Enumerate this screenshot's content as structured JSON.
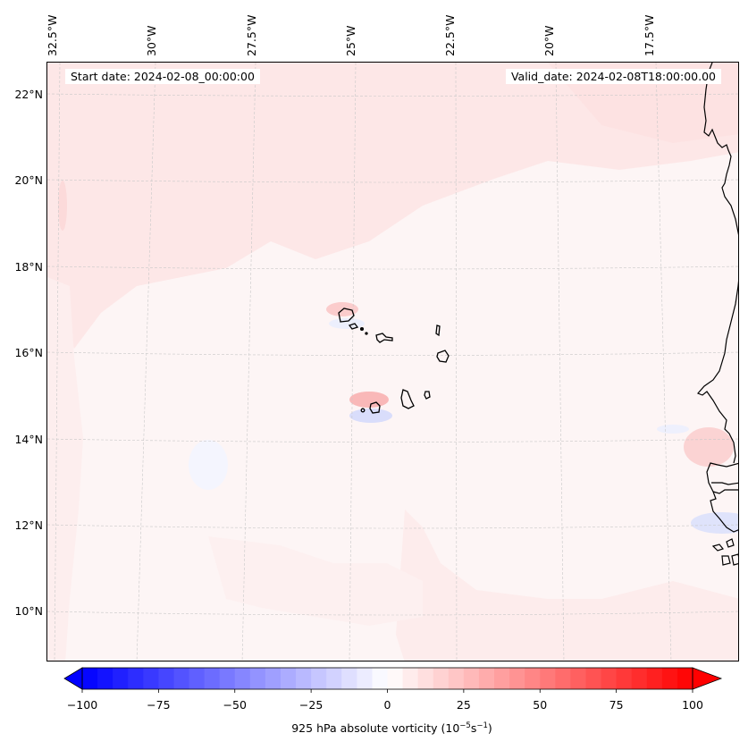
{
  "map": {
    "variable": "925 hPa absolute vorticity",
    "start_date_label": "Start date: 2024-02-08_00:00:00",
    "valid_date_label": "Valid_date: 2024-02-08T18:00:00.00",
    "longitude_labels": [
      "32.5°W",
      "30°W",
      "27.5°W",
      "25°W",
      "22.5°W",
      "20°W",
      "17.5°W"
    ],
    "latitude_labels": [
      "22°N",
      "20°N",
      "18°N",
      "16°N",
      "14°N",
      "12°N",
      "10°N"
    ],
    "extent": {
      "lon_min": -33,
      "lon_max": -16.2,
      "lat_min": 9,
      "lat_max": 22.8
    },
    "regions": {
      "cape_verde_islands": "Cape Verde",
      "coastline": "West Africa (Mauritania, Senegal, Gambia, Guinea-Bissau)"
    }
  },
  "colorbar": {
    "title_prefix": "925 hPa absolute vorticity (10",
    "title_exp1": "−5",
    "title_mid": "s",
    "title_exp2": "−1",
    "title_suffix": ")",
    "min": -100,
    "max": 100,
    "step": 5,
    "extend": "both",
    "ticks": [
      -100,
      -75,
      -50,
      -25,
      0,
      25,
      50,
      75,
      100
    ],
    "tick_labels": [
      "−100",
      "−75",
      "−50",
      "−25",
      "0",
      "25",
      "50",
      "75",
      "100"
    ],
    "cmap": "bwr",
    "low_color": "#0000ff",
    "mid_color": "#ffffff",
    "high_color": "#ff0000"
  },
  "chart_data": {
    "type": "heatmap",
    "title": "",
    "variable": "925 hPa absolute vorticity",
    "units": "10^-5 s^-1",
    "value_range": [
      -100,
      100
    ],
    "typical_field_values": "mostly 0 to +10 over ocean; local maxima ~+15 near Cape Verde islands; local minima ~-10 in lee of islands and near Guinea-Bissau coast",
    "xlabel_ticks": [
      "32.5°W",
      "30°W",
      "27.5°W",
      "25°W",
      "22.5°W",
      "20°W",
      "17.5°W"
    ],
    "ylabel_ticks": [
      "22°N",
      "20°N",
      "18°N",
      "16°N",
      "14°N",
      "12°N",
      "10°N"
    ],
    "grid": true,
    "legend": "colorbar-bottom"
  }
}
